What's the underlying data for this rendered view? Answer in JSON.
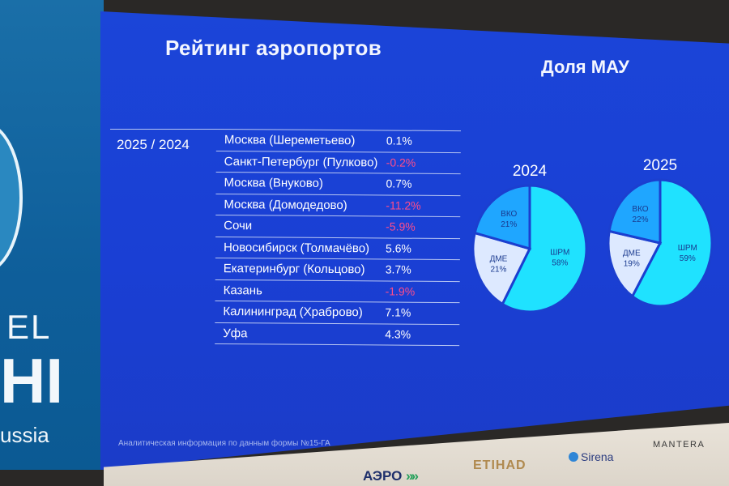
{
  "side_panel": {
    "word_top": "EL",
    "word_big": "HI",
    "word_bottom": "ussia"
  },
  "slide": {
    "title": "Рейтинг аэропортов",
    "share_title": "Доля МАУ",
    "period_label": "2025 / 2024",
    "footnote": "Аналитическая информация по данным формы №15-ГА",
    "accent_color": "#1b41d6",
    "negative_color": "#ff4d8a"
  },
  "ranking": [
    {
      "airport": "Москва (Шереметьево)",
      "change": "0.1%",
      "negative": false
    },
    {
      "airport": "Санкт-Петербург (Пулково)",
      "change": "-0.2%",
      "negative": true
    },
    {
      "airport": "Москва (Внуково)",
      "change": "0.7%",
      "negative": false
    },
    {
      "airport": "Москва (Домодедово)",
      "change": "-11.2%",
      "negative": true
    },
    {
      "airport": "Сочи",
      "change": "-5.9%",
      "negative": true
    },
    {
      "airport": "Новосибирск (Толмачёво)",
      "change": "5.6%",
      "negative": false
    },
    {
      "airport": "Екатеринбург (Кольцово)",
      "change": "3.7%",
      "negative": false
    },
    {
      "airport": "Казань",
      "change": "-1.9%",
      "negative": true
    },
    {
      "airport": "Калининград (Храброво)",
      "change": "7.1%",
      "negative": false
    },
    {
      "airport": "Уфа",
      "change": "4.3%",
      "negative": false
    }
  ],
  "chart_data": [
    {
      "type": "pie",
      "title": "2024",
      "categories": [
        "ШРМ",
        "ДМЕ",
        "ВКО"
      ],
      "values": [
        58,
        21,
        21
      ],
      "labels": [
        "58%",
        "21%",
        "21%"
      ],
      "colors": [
        "#1fe2ff",
        "#dde9ff",
        "#1fa6ff"
      ]
    },
    {
      "type": "pie",
      "title": "2025",
      "categories": [
        "ШРМ",
        "ДМЕ",
        "ВКО"
      ],
      "values": [
        59,
        19,
        22
      ],
      "labels": [
        "59%",
        "19%",
        "22%"
      ],
      "colors": [
        "#1fe2ff",
        "#dde9ff",
        "#1fa6ff"
      ]
    }
  ],
  "logos": {
    "aero": "АЭРО",
    "aero_arrows": "»»",
    "etihad": "ETIHAD",
    "sirena": "Sirena",
    "mantera": "MANTERA"
  }
}
